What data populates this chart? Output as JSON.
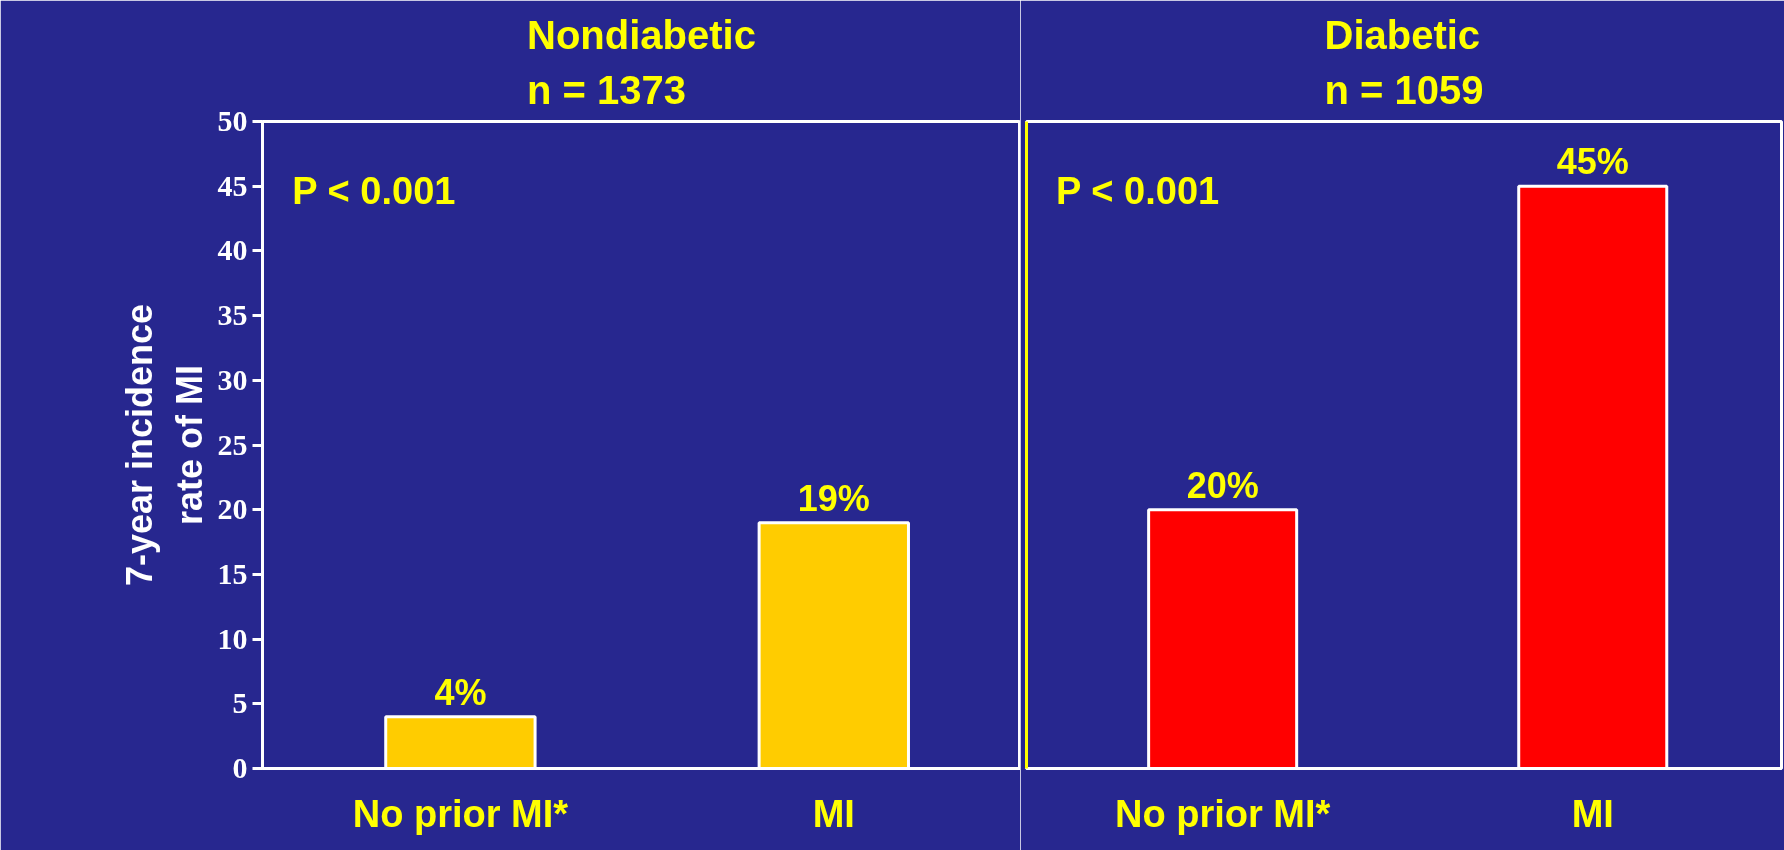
{
  "chart_data": [
    {
      "type": "bar",
      "title": "Nondiabetic\nn = 1373",
      "ylabel": "7-year incidence\nrate of MI",
      "categories": [
        "No prior MI*",
        "MI"
      ],
      "values": [
        4,
        19
      ],
      "colors": [
        "#ffcc00",
        "#ffcc00"
      ],
      "value_labels": [
        "4%",
        "19%"
      ],
      "ylim": [
        0,
        50
      ],
      "yticks": [
        0,
        5,
        10,
        15,
        20,
        25,
        30,
        35,
        40,
        45,
        50
      ],
      "annotations": [
        "P < 0.001"
      ],
      "grid": false
    },
    {
      "type": "bar",
      "title": "Diabetic\nn = 1059",
      "categories": [
        "No prior MI*",
        "MI"
      ],
      "values": [
        20,
        45
      ],
      "colors": [
        "#ff0000",
        "#ff0000"
      ],
      "value_labels": [
        "20%",
        "45%"
      ],
      "ylim": [
        0,
        50
      ],
      "yticks": [
        0,
        5,
        10,
        15,
        20,
        25,
        30,
        35,
        40,
        45,
        50
      ],
      "annotations": [
        "P < 0.001"
      ],
      "grid": false,
      "tick_labels": "x"
    }
  ]
}
